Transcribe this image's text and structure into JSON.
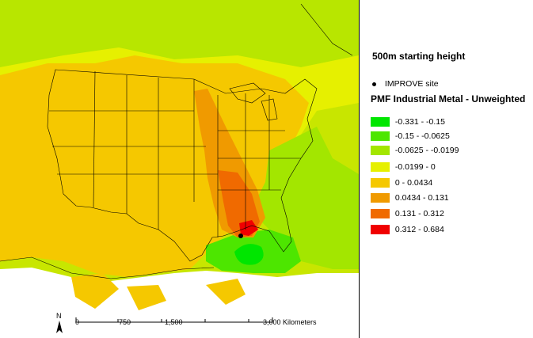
{
  "map": {
    "site_label": "IMPROVE site",
    "colors": {
      "bin1": "#00e600",
      "bin2": "#4de600",
      "bin3": "#a3e600",
      "bin4": "#e6f000",
      "bin5": "#f5c800",
      "bin6": "#f09a00",
      "bin7": "#f06a00",
      "bin8": "#f00000",
      "state_lines": "#000000",
      "water": "#ffffff"
    }
  },
  "legend": {
    "starting_height": "500m starting height",
    "site_label": "IMPROVE site",
    "title": "PMF Industrial Metal - Unweighted",
    "items": [
      {
        "label": "-0.331 - -0.15",
        "color": "#00e600"
      },
      {
        "label": "-0.15 - -0.0625",
        "color": "#4de600"
      },
      {
        "label": "-0.0625 - -0.0199",
        "color": "#a3e600"
      },
      {
        "label": "-0.0199 - 0",
        "color": "#e6f000"
      },
      {
        "label": "0 - 0.0434",
        "color": "#f5c800"
      },
      {
        "label": "0.0434 - 0.131",
        "color": "#f09a00"
      },
      {
        "label": "0.131 - 0.312",
        "color": "#f06a00"
      },
      {
        "label": "0.312 - 0.684",
        "color": "#f00000"
      }
    ]
  },
  "scale": {
    "ticks": [
      "0",
      "750",
      "1,500",
      "3,000 Kilometers"
    ],
    "north_label": "N"
  }
}
